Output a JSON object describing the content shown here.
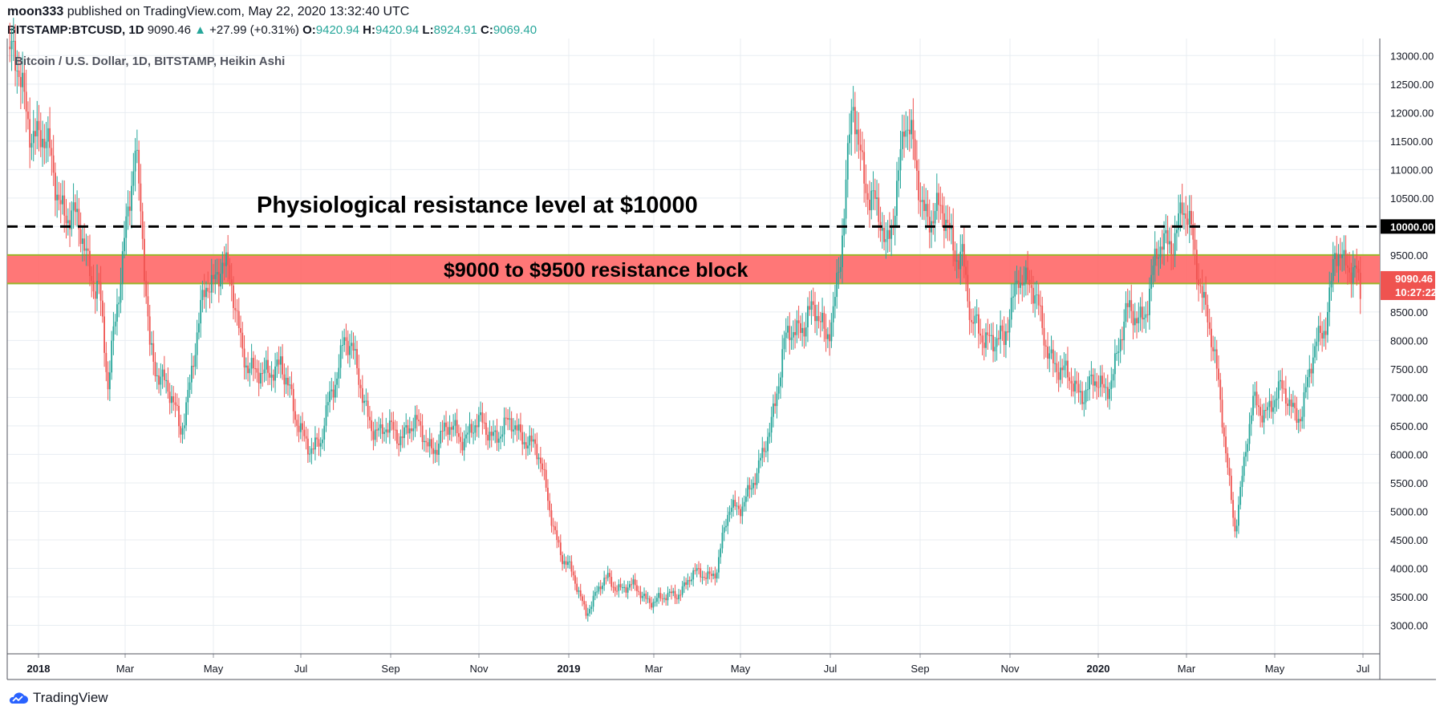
{
  "header": {
    "author": "moon333",
    "published_text": "published on TradingView.com, May 22, 2020 13:32:40 UTC",
    "symbol": "BITSTAMP:BTCUSD, 1D",
    "last": "9090.46",
    "change": "+27.99 (+0.31%)",
    "o_label": "O:",
    "o_value": "9420.94",
    "h_label": "H:",
    "h_value": "9420.94",
    "l_label": "L:",
    "l_value": "8924.91",
    "c_label": "C:",
    "c_value": "9069.40"
  },
  "footer": {
    "brand": "TradingView"
  },
  "colors": {
    "up": "#26a69a",
    "down": "#ef5350",
    "band": "#ff6b6b",
    "band_edge": "#9bb52b",
    "grid": "#e8edf2"
  },
  "chart_data": {
    "type": "candlestick",
    "title": "Bitcoin / U.S. Dollar, 1D, BITSTAMP, Heikin Ashi",
    "ylim": [
      2500,
      13300
    ],
    "y_ticks": [
      "13000.00",
      "12500.00",
      "12000.00",
      "11500.00",
      "11000.00",
      "10500.00",
      "10000.00",
      "9500.00",
      "9000.00",
      "8500.00",
      "8000.00",
      "7500.00",
      "7000.00",
      "6500.00",
      "6000.00",
      "5500.00",
      "5000.00",
      "4500.00",
      "4000.00",
      "3500.00",
      "3000.00"
    ],
    "x_ticks": [
      "2018",
      "Mar",
      "May",
      "Jul",
      "Sep",
      "Nov",
      "2019",
      "Mar",
      "May",
      "Jul",
      "Sep",
      "Nov",
      "2020",
      "Mar",
      "May",
      "Jul"
    ],
    "x_bold": [
      "2018",
      "2019",
      "2020"
    ],
    "annotations": {
      "resistance_text": "Physiological resistance level at $10000",
      "resistance_level": 10000,
      "block_text": "$9000 to $9500 resistance block",
      "block_range": [
        9000,
        9500
      ]
    },
    "price_labels": {
      "level": "10000.00",
      "last": "9090.46",
      "countdown": "10:27:22"
    },
    "keypoints": [
      [
        0,
        13000
      ],
      [
        30,
        10500
      ],
      [
        50,
        9000
      ],
      [
        55,
        7000
      ],
      [
        64,
        10000
      ],
      [
        70,
        11200
      ],
      [
        78,
        8000
      ],
      [
        88,
        7000
      ],
      [
        95,
        6500
      ],
      [
        110,
        9000
      ],
      [
        118,
        9500
      ],
      [
        128,
        8000
      ],
      [
        140,
        7200
      ],
      [
        150,
        7800
      ],
      [
        158,
        6500
      ],
      [
        172,
        6100
      ],
      [
        185,
        8200
      ],
      [
        195,
        7000
      ],
      [
        205,
        6300
      ],
      [
        220,
        6500
      ],
      [
        233,
        6200
      ],
      [
        245,
        6400
      ],
      [
        265,
        6450
      ],
      [
        285,
        6400
      ],
      [
        290,
        6100
      ],
      [
        305,
        4200
      ],
      [
        318,
        3300
      ],
      [
        330,
        3800
      ],
      [
        345,
        3600
      ],
      [
        360,
        3400
      ],
      [
        375,
        3800
      ],
      [
        390,
        4000
      ],
      [
        397,
        5000
      ],
      [
        412,
        5500
      ],
      [
        427,
        7800
      ],
      [
        440,
        8600
      ],
      [
        450,
        8000
      ],
      [
        458,
        9500
      ],
      [
        465,
        12000
      ],
      [
        473,
        10800
      ],
      [
        483,
        9500
      ],
      [
        493,
        11800
      ],
      [
        503,
        10500
      ],
      [
        515,
        10000
      ],
      [
        525,
        9600
      ],
      [
        530,
        8100
      ],
      [
        540,
        8200
      ],
      [
        548,
        7800
      ],
      [
        556,
        9400
      ],
      [
        565,
        8600
      ],
      [
        580,
        7300
      ],
      [
        592,
        7200
      ],
      [
        603,
        7100
      ],
      [
        615,
        8300
      ],
      [
        625,
        8600
      ],
      [
        635,
        9600
      ],
      [
        646,
        10300
      ],
      [
        660,
        8600
      ],
      [
        670,
        6000
      ],
      [
        675,
        4800
      ],
      [
        685,
        6800
      ],
      [
        700,
        7000
      ],
      [
        712,
        6800
      ],
      [
        725,
        8500
      ],
      [
        730,
        9600
      ],
      [
        735,
        9100
      ],
      [
        742,
        9400
      ],
      [
        744,
        9070
      ]
    ]
  }
}
